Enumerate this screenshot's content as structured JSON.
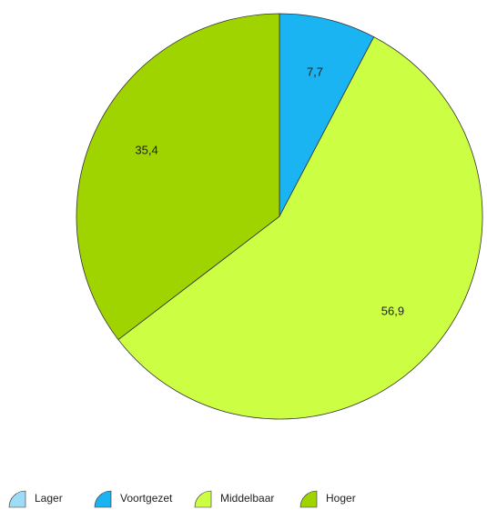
{
  "chart_data": {
    "type": "pie",
    "categories": [
      "Lager",
      "Voortgezet",
      "Middelbaar",
      "Hoger"
    ],
    "values": [
      0,
      7.7,
      56.9,
      35.4
    ],
    "value_labels": [
      null,
      "7,7",
      "56,9",
      "35,4"
    ],
    "colors": [
      "#9ddcf6",
      "#1ab4f2",
      "#ccff44",
      "#a0d400"
    ],
    "legend": "bottom"
  }
}
